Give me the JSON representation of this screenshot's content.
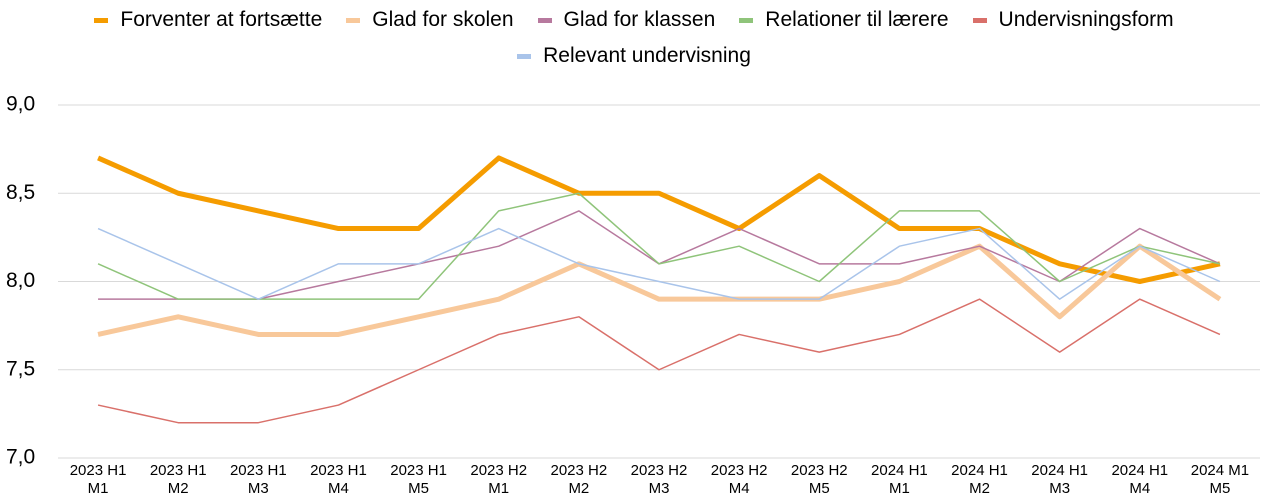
{
  "chart_data": {
    "type": "line",
    "categories": [
      "2023 H1 M1",
      "2023 H1 M2",
      "2023 H1 M3",
      "2023 H1 M4",
      "2023 H1 M5",
      "2023 H2 M1",
      "2023 H2 M2",
      "2023 H2 M3",
      "2023 H2 M4",
      "2023 H2 M5",
      "2024 H1 M1",
      "2024 H1 M2",
      "2024 H1 M3",
      "2024 H1 M4",
      "2024 M1 M5"
    ],
    "series": [
      {
        "name": "Forventer at fortsætte",
        "color": "#f59c00",
        "line_width": 5,
        "values": [
          8.7,
          8.5,
          8.4,
          8.3,
          8.3,
          8.7,
          8.5,
          8.5,
          8.3,
          8.6,
          8.3,
          8.3,
          8.1,
          8.0,
          8.1
        ]
      },
      {
        "name": "Glad for skolen",
        "color": "#f8c89a",
        "line_width": 5,
        "values": [
          7.7,
          7.8,
          7.7,
          7.7,
          7.8,
          7.9,
          8.1,
          7.9,
          7.9,
          7.9,
          8.0,
          8.2,
          7.8,
          8.2,
          7.9
        ]
      },
      {
        "name": "Glad for klassen",
        "color": "#b7799e",
        "line_width": 1.5,
        "values": [
          7.9,
          7.9,
          7.9,
          8.0,
          8.1,
          8.2,
          8.4,
          8.1,
          8.3,
          8.1,
          8.1,
          8.2,
          8.0,
          8.3,
          8.1
        ]
      },
      {
        "name": "Relationer til lærere",
        "color": "#8fc47a",
        "line_width": 1.5,
        "values": [
          8.1,
          7.9,
          7.9,
          7.9,
          7.9,
          8.4,
          8.5,
          8.1,
          8.2,
          8.0,
          8.4,
          8.4,
          8.0,
          8.2,
          8.1
        ]
      },
      {
        "name": "Undervisningsform",
        "color": "#d9706a",
        "line_width": 1.5,
        "values": [
          7.3,
          7.2,
          7.2,
          7.3,
          7.5,
          7.7,
          7.8,
          7.5,
          7.7,
          7.6,
          7.7,
          7.9,
          7.6,
          7.9,
          7.7
        ]
      },
      {
        "name": "Relevant undervisning",
        "color": "#a9c4ea",
        "line_width": 1.5,
        "values": [
          8.3,
          8.1,
          7.9,
          8.1,
          8.1,
          8.3,
          8.1,
          8.0,
          7.9,
          7.9,
          8.2,
          8.3,
          7.9,
          8.2,
          8.0
        ]
      }
    ],
    "ylim": [
      7,
      9
    ],
    "yticks": [
      {
        "value": 7,
        "label": "7,0"
      },
      {
        "value": 7.5,
        "label": "7,5"
      },
      {
        "value": 8,
        "label": "8,0"
      },
      {
        "value": 8.5,
        "label": "8,5"
      },
      {
        "value": 9,
        "label": "9,0"
      }
    ],
    "grid": true,
    "legend": "top"
  }
}
